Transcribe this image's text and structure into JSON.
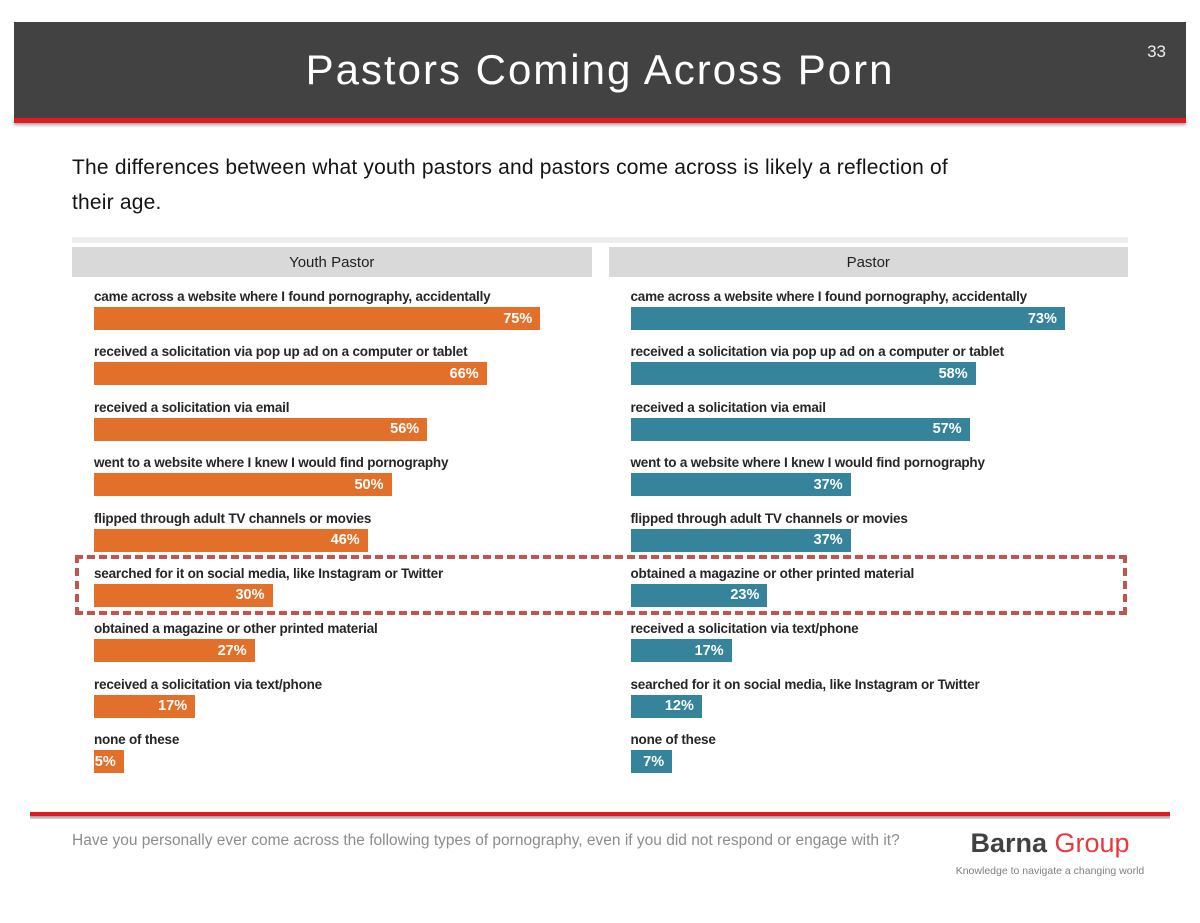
{
  "slide": {
    "title": "Pastors Coming Across Porn",
    "page_number": "33",
    "subtitle": "The differences between what youth pastors and pastors come across is likely a reflection of their age.",
    "footer_question": "Have you personally ever come across the following types of pornography, even if you did not respond or engage with it?",
    "logo": {
      "name_primary": "Barna",
      "name_secondary": "Group",
      "tagline": "Knowledge to navigate a changing world"
    }
  },
  "colors": {
    "header_bar": "#424242",
    "accent_red": "#e01b22",
    "youth_pastor_orange": "#e2702b",
    "pastor_teal": "#35849b",
    "highlight_dashed_red": "#c4524d",
    "column_header_gray": "#d9d9d9"
  },
  "chart_data": {
    "type": "bar",
    "orientation": "horizontal",
    "unit": "%",
    "value_axis_range": [
      0,
      100
    ],
    "grid": false,
    "legend": "none",
    "panels": [
      {
        "header": "Youth Pastor",
        "bar_color": "#e2702b",
        "items": [
          {
            "label": "came across a website where I found pornography, accidentally",
            "value": 75
          },
          {
            "label": "received a solicitation via pop up ad on a computer or tablet",
            "value": 66
          },
          {
            "label": "received a solicitation via email",
            "value": 56
          },
          {
            "label": "went to a website where I knew I would find pornography",
            "value": 50
          },
          {
            "label": "flipped through adult TV channels or movies",
            "value": 46
          },
          {
            "label": "searched for it on social media, like Instagram or Twitter",
            "value": 30
          },
          {
            "label": "obtained a magazine or other printed material",
            "value": 27
          },
          {
            "label": "received a solicitation via text/phone",
            "value": 17
          },
          {
            "label": "none of these",
            "value": 5
          }
        ]
      },
      {
        "header": "Pastor",
        "bar_color": "#35849b",
        "items": [
          {
            "label": "came across a website where I found pornography, accidentally",
            "value": 73
          },
          {
            "label": "received a solicitation via pop up ad on a computer or tablet",
            "value": 58
          },
          {
            "label": "received a solicitation via email",
            "value": 57
          },
          {
            "label": "went to a website where I knew I would find pornography",
            "value": 37
          },
          {
            "label": "flipped through adult TV channels or movies",
            "value": 37
          },
          {
            "label": "obtained a magazine or other printed material",
            "value": 23
          },
          {
            "label": "received a solicitation via text/phone",
            "value": 17
          },
          {
            "label": "searched for it on social media, like Instagram or Twitter",
            "value": 12
          },
          {
            "label": "none of these",
            "value": 7
          }
        ]
      }
    ],
    "highlight_box": {
      "style": "dashed",
      "color": "#c4524d",
      "highlighted_row_index": 5,
      "highlighted_items": [
        "Youth Pastor: searched for it on social media, like Instagram or Twitter — 30%",
        "Pastor: obtained a magazine or other printed material — 23%"
      ]
    }
  }
}
